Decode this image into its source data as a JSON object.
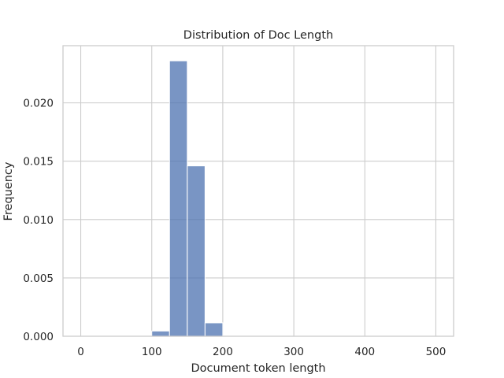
{
  "chart_data": {
    "type": "bar",
    "title": "Distribution of Doc Length",
    "xlabel": "Document token length",
    "ylabel": "Frequency",
    "xlim": [
      -25,
      525
    ],
    "ylim": [
      0,
      0.0249
    ],
    "xticks": [
      0,
      100,
      200,
      300,
      400,
      500
    ],
    "yticks": [
      0.0,
      0.005,
      0.01,
      0.015,
      0.02
    ],
    "ytick_labels": [
      "0.000",
      "0.005",
      "0.010",
      "0.015",
      "0.020"
    ],
    "grid": true,
    "bin_width": 25,
    "bins": [
      {
        "x0": 0,
        "x1": 25,
        "value": 0
      },
      {
        "x0": 25,
        "x1": 50,
        "value": 0
      },
      {
        "x0": 50,
        "x1": 75,
        "value": 0
      },
      {
        "x0": 75,
        "x1": 100,
        "value": 0
      },
      {
        "x0": 100,
        "x1": 125,
        "value": 0.00045
      },
      {
        "x0": 125,
        "x1": 150,
        "value": 0.0236
      },
      {
        "x0": 150,
        "x1": 175,
        "value": 0.0146
      },
      {
        "x0": 175,
        "x1": 200,
        "value": 0.00115
      },
      {
        "x0": 200,
        "x1": 225,
        "value": 5e-05
      },
      {
        "x0": 225,
        "x1": 250,
        "value": 0
      },
      {
        "x0": 250,
        "x1": 275,
        "value": 0
      },
      {
        "x0": 275,
        "x1": 300,
        "value": 0
      },
      {
        "x0": 300,
        "x1": 325,
        "value": 0
      },
      {
        "x0": 325,
        "x1": 350,
        "value": 0
      },
      {
        "x0": 350,
        "x1": 375,
        "value": 0
      },
      {
        "x0": 375,
        "x1": 400,
        "value": 0
      },
      {
        "x0": 400,
        "x1": 425,
        "value": 0
      },
      {
        "x0": 425,
        "x1": 450,
        "value": 0
      },
      {
        "x0": 450,
        "x1": 475,
        "value": 0
      },
      {
        "x0": 475,
        "x1": 500,
        "value": 0
      }
    ],
    "bar_color": "#4c72b0"
  }
}
